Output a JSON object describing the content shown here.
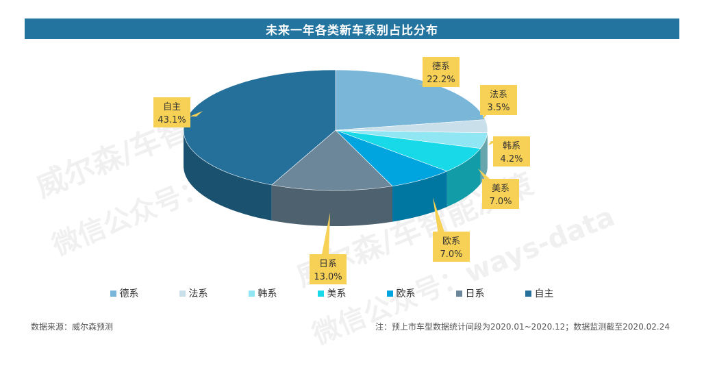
{
  "title": "未来一年各类新车系别占比分布",
  "chart_data": {
    "type": "pie",
    "categories": [
      "德系",
      "法系",
      "韩系",
      "美系",
      "欧系",
      "日系",
      "自主"
    ],
    "values": [
      22.2,
      3.5,
      4.2,
      7.0,
      7.0,
      13.0,
      43.1
    ],
    "value_labels": [
      "22.2%",
      "3.5%",
      "4.2%",
      "7.0%",
      "7.0%",
      "13.0%",
      "43.1%"
    ],
    "colors": [
      "#7ab6d8",
      "#c9dfe9",
      "#90e6f2",
      "#17d9e8",
      "#00a5df",
      "#6c8799",
      "#24709a"
    ],
    "legend_position": "bottom",
    "style": "3d"
  },
  "source": "数据来源：威尔森预测",
  "note": "注：预上市车型数据统计间段为2020.01~2020.12；数据监测截至2020.02.24",
  "watermark": {
    "line1": "威尔森/车智能决策",
    "line2": "微信公众号：ways-data"
  }
}
